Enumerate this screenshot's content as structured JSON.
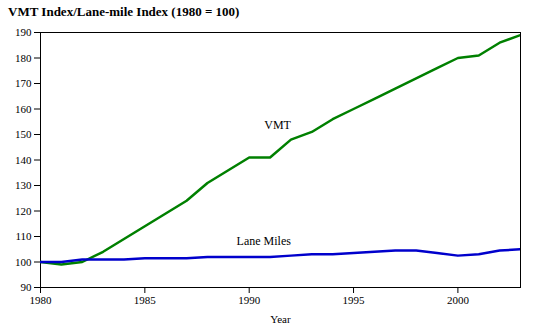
{
  "chart_data": {
    "type": "line",
    "title": "VMT Index/Lane-mile Index (1980 = 100)",
    "xlabel": "Year",
    "x": [
      1980,
      1981,
      1982,
      1983,
      1984,
      1985,
      1986,
      1987,
      1988,
      1989,
      1990,
      1991,
      1992,
      1993,
      1994,
      1995,
      1996,
      1997,
      1998,
      1999,
      2000,
      2001,
      2002,
      2003
    ],
    "series": [
      {
        "name": "VMT",
        "color": "#008000",
        "values": [
          100,
          99,
          100,
          104,
          109,
          114,
          119,
          124,
          131,
          136,
          141,
          141,
          148,
          151,
          156,
          160,
          164,
          168,
          172,
          176,
          180,
          181,
          186,
          189
        ]
      },
      {
        "name": "Lane Miles",
        "color": "#0000cc",
        "values": [
          100,
          100,
          101,
          101,
          101,
          101.5,
          101.5,
          101.5,
          102,
          102,
          102,
          102,
          102.5,
          103,
          103,
          103.5,
          104,
          104.5,
          104.5,
          103.5,
          102.5,
          103,
          104.5,
          105
        ]
      }
    ],
    "xlim": [
      1980,
      2003
    ],
    "xticks": [
      1980,
      1985,
      1990,
      1995,
      2000
    ],
    "ylim": [
      90,
      190
    ],
    "yticks": [
      90,
      100,
      110,
      120,
      130,
      140,
      150,
      160,
      170,
      180,
      190
    ],
    "grid": false
  }
}
